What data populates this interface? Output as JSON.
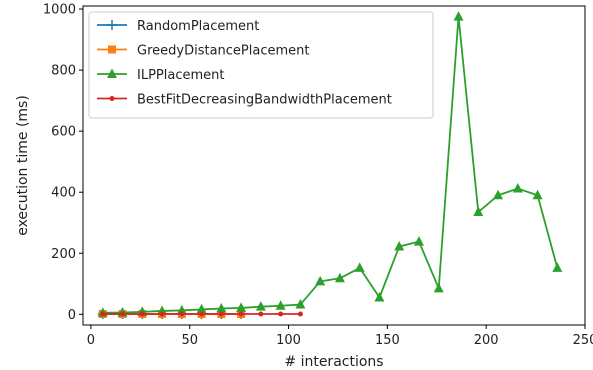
{
  "chart_data": {
    "type": "line",
    "title": "",
    "xlabel": "# interactions",
    "ylabel": "execution time (ms)",
    "xlim": [
      -4,
      250
    ],
    "ylim": [
      -35,
      1010
    ],
    "x_ticks": [
      0,
      50,
      100,
      150,
      200,
      250
    ],
    "y_ticks": [
      0,
      200,
      400,
      600,
      800,
      1000
    ],
    "grid": false,
    "legend_position": "top-left",
    "series": [
      {
        "name": "RandomPlacement",
        "color": "#1f77b4",
        "marker": "plus",
        "x": [
          6,
          16,
          26,
          36,
          46,
          56,
          66,
          76
        ],
        "y": [
          1,
          1,
          1,
          1,
          1,
          1,
          1,
          1
        ]
      },
      {
        "name": "GreedyDistancePlacement",
        "color": "#ff7f0e",
        "marker": "square",
        "x": [
          6,
          16,
          26,
          36,
          46,
          56,
          66,
          76
        ],
        "y": [
          1,
          1,
          1,
          1,
          1,
          1,
          1,
          1
        ]
      },
      {
        "name": "ILPPlacement",
        "color": "#2ca02c",
        "marker": "triangle",
        "x": [
          6,
          16,
          26,
          36,
          46,
          56,
          66,
          76,
          86,
          96,
          106,
          116,
          126,
          136,
          146,
          156,
          166,
          176,
          186,
          196,
          206,
          216,
          226,
          236
        ],
        "y": [
          5,
          6,
          8,
          11,
          13,
          16,
          19,
          21,
          25,
          28,
          32,
          108,
          118,
          152,
          55,
          222,
          238,
          85,
          975,
          335,
          390,
          412,
          390,
          152
        ]
      },
      {
        "name": "BestFitDecreasingBandwidthPlacement",
        "color": "#d62728",
        "marker": "dot",
        "x": [
          6,
          16,
          26,
          36,
          46,
          56,
          66,
          76,
          86,
          96,
          106
        ],
        "y": [
          1,
          1,
          1,
          1,
          1,
          1,
          1,
          1,
          1,
          1,
          1
        ]
      }
    ]
  }
}
